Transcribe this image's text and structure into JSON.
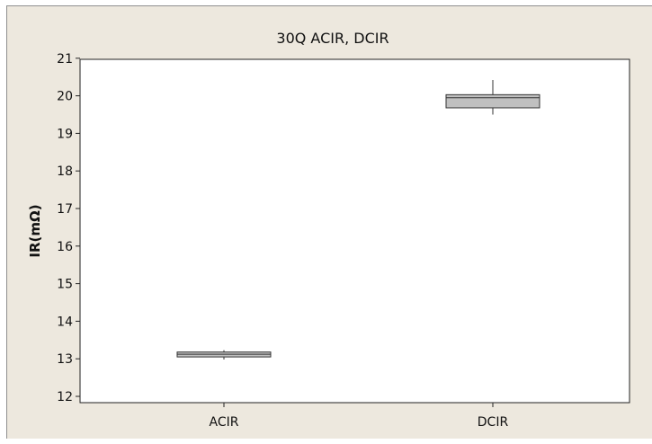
{
  "chart_data": {
    "type": "box",
    "title": "30Q ACIR, DCIR",
    "xlabel": "",
    "ylabel": "IR(mΩ)",
    "ylim": [
      12,
      21
    ],
    "yticks": [
      12,
      13,
      14,
      15,
      16,
      17,
      18,
      19,
      20,
      21
    ],
    "categories": [
      "ACIR",
      "DCIR"
    ],
    "boxes": [
      {
        "category": "ACIR",
        "min": 12.98,
        "q1": 13.05,
        "median": 13.12,
        "q3": 13.18,
        "max": 13.23
      },
      {
        "category": "DCIR",
        "min": 19.5,
        "q1": 19.68,
        "median": 19.95,
        "q3": 20.03,
        "max": 20.42
      }
    ],
    "grid": false,
    "colors": {
      "box_fill": "#c0c0c0",
      "box_stroke": "#333333",
      "plot_background": "#ffffff",
      "figure_background": "#ede8de"
    }
  }
}
